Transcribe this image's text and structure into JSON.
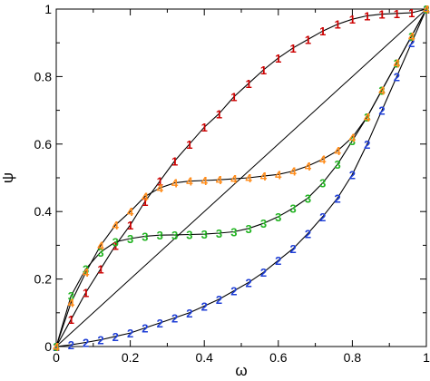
{
  "chart_data": {
    "type": "line",
    "xlabel": "ω",
    "ylabel": "ψ",
    "xlim": [
      0,
      1
    ],
    "ylim": [
      0,
      1
    ],
    "x_ticks": [
      "0",
      "0.2",
      "0.4",
      "0.6",
      "0.8",
      "1"
    ],
    "y_ticks": [
      "0",
      "0.2",
      "0.4",
      "0.6",
      "0.8",
      "1"
    ],
    "grid": false,
    "legend": "none",
    "reference_line": {
      "x": [
        0,
        1
      ],
      "y": [
        0,
        1
      ],
      "color": "#000000"
    },
    "series": [
      {
        "marker": "1",
        "color": "#cc0000",
        "x": [
          0,
          0.04,
          0.08,
          0.12,
          0.16,
          0.2,
          0.24,
          0.28,
          0.32,
          0.36,
          0.4,
          0.44,
          0.48,
          0.52,
          0.56,
          0.6,
          0.64,
          0.68,
          0.72,
          0.76,
          0.8,
          0.84,
          0.88,
          0.92,
          0.96,
          1
        ],
        "y": [
          0,
          0.08,
          0.16,
          0.23,
          0.3,
          0.36,
          0.43,
          0.49,
          0.55,
          0.6,
          0.65,
          0.69,
          0.74,
          0.78,
          0.82,
          0.855,
          0.885,
          0.91,
          0.935,
          0.955,
          0.97,
          0.98,
          0.985,
          0.987,
          0.989,
          1
        ]
      },
      {
        "marker": "2",
        "color": "#1f3fd6",
        "x": [
          0,
          0.04,
          0.08,
          0.12,
          0.16,
          0.2,
          0.24,
          0.28,
          0.32,
          0.36,
          0.4,
          0.44,
          0.48,
          0.52,
          0.56,
          0.6,
          0.64,
          0.68,
          0.72,
          0.76,
          0.8,
          0.84,
          0.88,
          0.92,
          0.96,
          1
        ],
        "y": [
          0,
          0.005,
          0.012,
          0.02,
          0.03,
          0.04,
          0.055,
          0.07,
          0.085,
          0.1,
          0.12,
          0.14,
          0.165,
          0.19,
          0.22,
          0.255,
          0.29,
          0.335,
          0.385,
          0.44,
          0.51,
          0.6,
          0.7,
          0.8,
          0.9,
          1
        ]
      },
      {
        "marker": "3",
        "color": "#22b422",
        "x": [
          0,
          0.04,
          0.08,
          0.12,
          0.16,
          0.2,
          0.24,
          0.28,
          0.32,
          0.36,
          0.4,
          0.44,
          0.48,
          0.52,
          0.56,
          0.6,
          0.64,
          0.68,
          0.72,
          0.76,
          0.8,
          0.84,
          0.88,
          0.92,
          0.96,
          1
        ],
        "y": [
          0,
          0.15,
          0.23,
          0.28,
          0.31,
          0.32,
          0.327,
          0.33,
          0.331,
          0.332,
          0.333,
          0.336,
          0.34,
          0.35,
          0.365,
          0.385,
          0.41,
          0.44,
          0.485,
          0.54,
          0.61,
          0.68,
          0.76,
          0.84,
          0.92,
          1
        ]
      },
      {
        "marker": "4",
        "color": "#ff8c1a",
        "x": [
          0,
          0.04,
          0.08,
          0.12,
          0.16,
          0.2,
          0.24,
          0.28,
          0.32,
          0.36,
          0.4,
          0.44,
          0.48,
          0.52,
          0.56,
          0.6,
          0.64,
          0.68,
          0.72,
          0.76,
          0.8,
          0.84,
          0.88,
          0.92,
          0.96,
          1
        ],
        "y": [
          0,
          0.13,
          0.22,
          0.3,
          0.36,
          0.4,
          0.445,
          0.47,
          0.485,
          0.49,
          0.492,
          0.494,
          0.497,
          0.5,
          0.505,
          0.51,
          0.52,
          0.535,
          0.555,
          0.58,
          0.62,
          0.68,
          0.76,
          0.84,
          0.92,
          1
        ]
      }
    ]
  }
}
